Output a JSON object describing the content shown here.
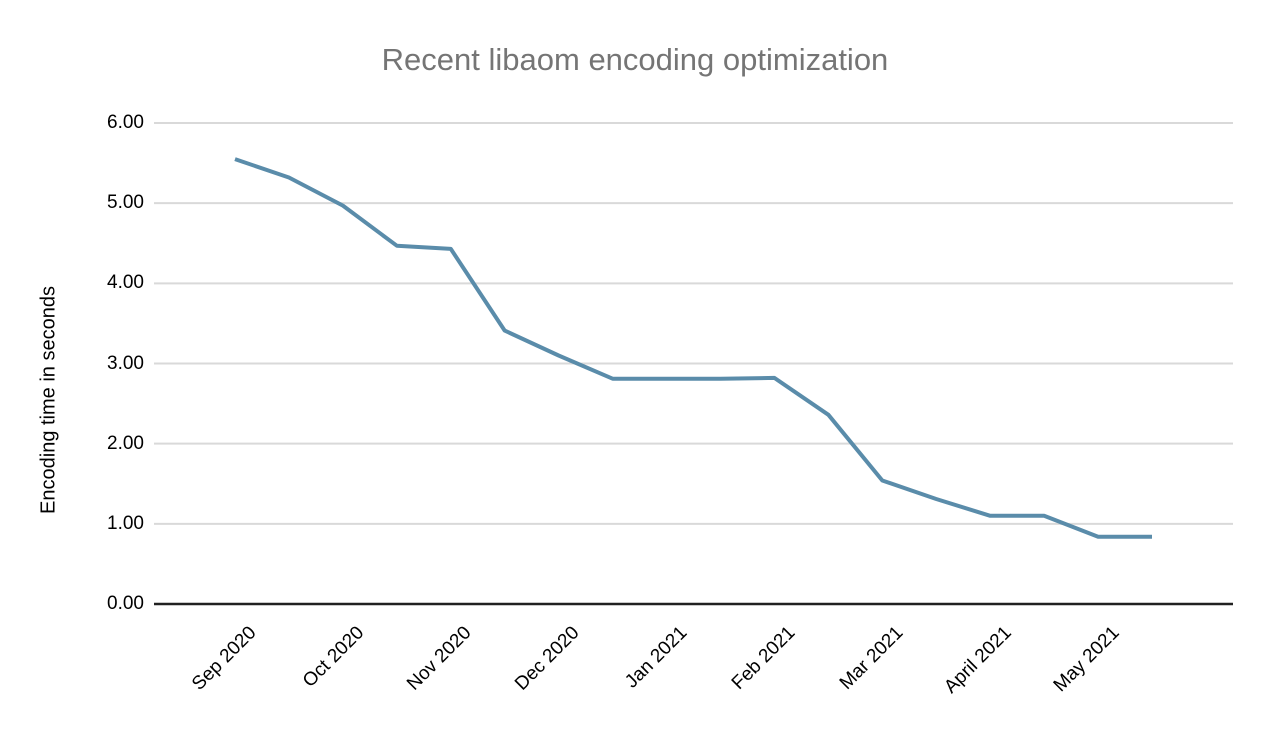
{
  "title": "Recent libaom encoding optimization",
  "colors": {
    "line": "#5a8caa",
    "title_text": "#757575",
    "axis_text": "#000000",
    "gridline": "#d9d9d9",
    "baseline": "#212121",
    "background": "#ffffff"
  },
  "chart_data": {
    "type": "line",
    "title": "Recent libaom encoding optimization",
    "xlabel": "",
    "ylabel": "Encoding time in seconds",
    "ylim": [
      0,
      6
    ],
    "ytick_step": 1,
    "ytick_labels": [
      "0.00",
      "1.00",
      "2.00",
      "3.00",
      "4.00",
      "5.00",
      "6.00"
    ],
    "x_tick_labels": [
      "Sep 2020",
      "Oct 2020",
      "Nov 2020",
      "Dec 2020",
      "Jan 2021",
      "Feb 2021",
      "Mar 2021",
      "April 2021",
      "May 2021"
    ],
    "points_per_tick": 2,
    "series": [
      {
        "name": "Encoding time in seconds",
        "values": [
          5.55,
          5.32,
          4.97,
          4.47,
          4.43,
          3.41,
          3.1,
          2.81,
          2.81,
          2.81,
          2.82,
          2.36,
          1.54,
          1.31,
          1.1,
          1.1,
          0.84,
          0.84
        ]
      }
    ],
    "grid": true,
    "legend": "none",
    "line_width": 4
  }
}
